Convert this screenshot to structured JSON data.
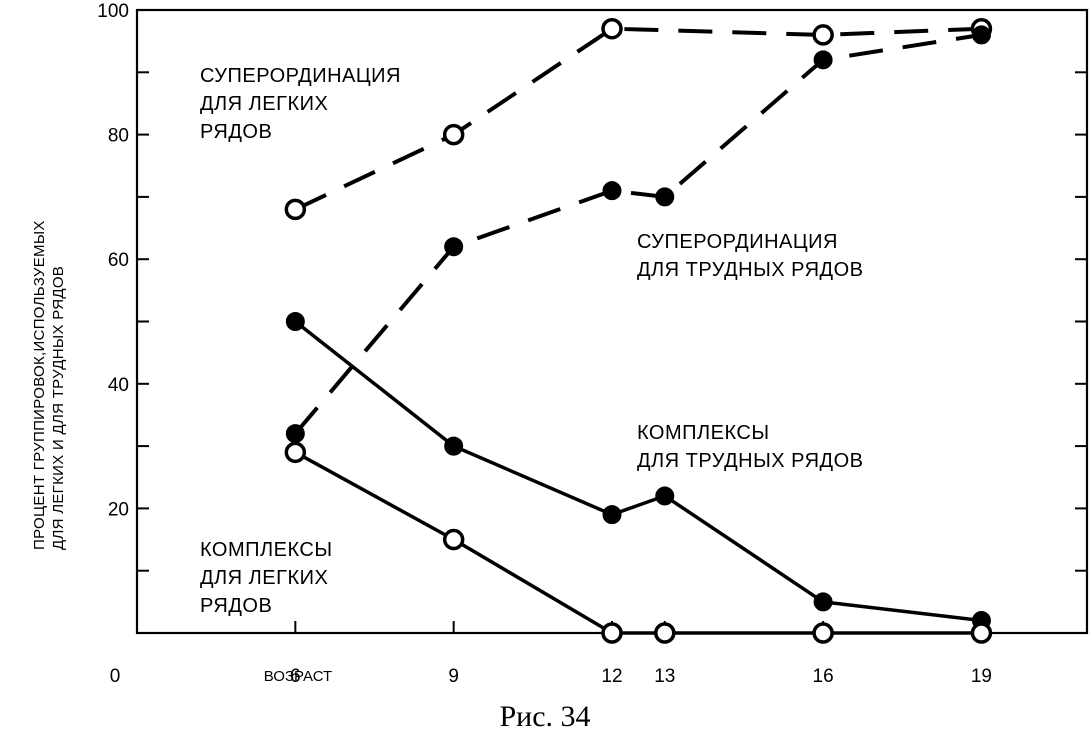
{
  "chart_data": {
    "type": "line",
    "xlabel": "ВОЗРАСТ",
    "ylabel_lines": [
      "ПРОЦЕНТ ГРУППИРОВОК,ИСПОЛЬЗУЕМЫХ",
      "ДЛЯ ЛЕГКИХ И ДЛЯ ТРУДНЫХ РЯДОВ"
    ],
    "origin_label": "0",
    "xlim": [
      3,
      21
    ],
    "ylim": [
      0,
      100
    ],
    "x_ticks": [
      6,
      9,
      12,
      13,
      16,
      19
    ],
    "x_tick_labels": [
      "6",
      "9",
      "12",
      "13",
      "16",
      "19"
    ],
    "y_ticks": [
      20,
      40,
      60,
      80,
      100
    ],
    "y_tick_labels": [
      "20",
      "40",
      "60",
      "80",
      "100"
    ],
    "y_minor_ticks": [
      10,
      30,
      50,
      70,
      90
    ],
    "grid": false,
    "series": [
      {
        "name": "СУПЕРОРДИНАЦИЯ ДЛЯ ЛЕГКИХ РЯДОВ",
        "label_lines": [
          "СУПЕРОРДИНАЦИЯ",
          "ДЛЯ ЛЕГКИХ",
          "РЯДОВ"
        ],
        "line_style": "dashed",
        "marker": "open-circle",
        "x": [
          6,
          9,
          12,
          16,
          19
        ],
        "y": [
          68,
          80,
          97,
          96,
          97
        ]
      },
      {
        "name": "СУПЕРОРДИНАЦИЯ ДЛЯ ТРУДНЫХ РЯДОВ",
        "label_lines": [
          "СУПЕРОРДИНАЦИЯ",
          "ДЛЯ ТРУДНЫХ РЯДОВ"
        ],
        "line_style": "dashed",
        "marker": "filled-circle",
        "x": [
          6,
          9,
          12,
          13,
          16,
          19
        ],
        "y": [
          32,
          62,
          71,
          70,
          92,
          96
        ]
      },
      {
        "name": "КОМПЛЕКСЫ ДЛЯ ТРУДНЫХ РЯДОВ",
        "label_lines": [
          "КОМПЛЕКСЫ",
          "ДЛЯ ТРУДНЫХ РЯДОВ"
        ],
        "line_style": "solid",
        "marker": "filled-circle",
        "x": [
          6,
          9,
          12,
          13,
          16,
          19
        ],
        "y": [
          50,
          30,
          19,
          22,
          5,
          2
        ]
      },
      {
        "name": "КОМПЛЕКСЫ ДЛЯ ЛЕГКИХ РЯДОВ",
        "label_lines": [
          "КОМПЛЕКСЫ",
          "ДЛЯ ЛЕГКИХ",
          "РЯДОВ"
        ],
        "line_style": "solid",
        "marker": "open-circle",
        "x": [
          6,
          9,
          12,
          13,
          16,
          19
        ],
        "y": [
          29,
          15,
          0,
          0,
          0,
          0
        ]
      }
    ]
  },
  "caption": "Рис. 34"
}
